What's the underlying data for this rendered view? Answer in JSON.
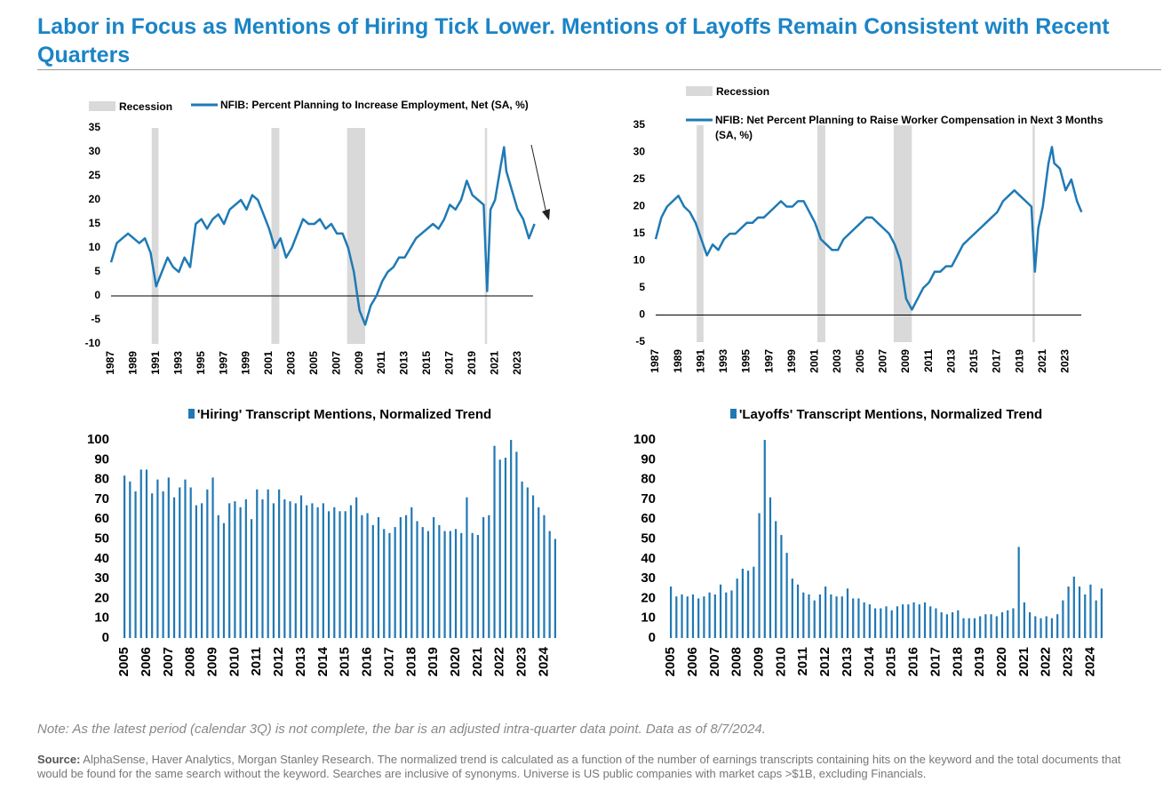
{
  "title": "Labor in Focus as Mentions of Hiring Tick Lower. Mentions of Layoffs Remain Consistent with Recent Quarters",
  "chart_data": [
    {
      "type": "line",
      "bands": {
        "name": "Recession",
        "color": "#d9d9d9",
        "ranges": [
          [
            1990.6,
            1991.2
          ],
          [
            2001.2,
            2001.9
          ],
          [
            2007.9,
            2009.5
          ],
          [
            2020.1,
            2020.3
          ]
        ]
      },
      "x": [
        1987,
        1987.5,
        1988,
        1988.5,
        1989,
        1989.5,
        1990,
        1990.5,
        1991,
        1991.5,
        1992,
        1992.5,
        1993,
        1993.5,
        1994,
        1994.5,
        1995,
        1995.5,
        1996,
        1996.5,
        1997,
        1997.5,
        1998,
        1998.5,
        1999,
        1999.5,
        2000,
        2000.5,
        2001,
        2001.5,
        2002,
        2002.5,
        2003,
        2003.5,
        2004,
        2004.5,
        2005,
        2005.5,
        2006,
        2006.5,
        2007,
        2007.5,
        2008,
        2008.5,
        2009,
        2009.5,
        2010,
        2010.5,
        2011,
        2011.5,
        2012,
        2012.5,
        2013,
        2013.5,
        2014,
        2014.5,
        2015,
        2015.5,
        2016,
        2016.5,
        2017,
        2017.5,
        2018,
        2018.5,
        2019,
        2019.5,
        2020,
        2020.3,
        2020.6,
        2021,
        2021.5,
        2021.8,
        2022,
        2022.5,
        2023,
        2023.5,
        2024,
        2024.5
      ],
      "series": [
        {
          "name": "NFIB: Percent Planning to Increase Employment, Net (SA, %)",
          "color": "#1f7ab5",
          "values": [
            7,
            11,
            12,
            13,
            12,
            11,
            12,
            9,
            2,
            5,
            8,
            6,
            5,
            8,
            6,
            15,
            16,
            14,
            16,
            17,
            15,
            18,
            19,
            20,
            18,
            21,
            20,
            17,
            14,
            10,
            12,
            8,
            10,
            13,
            16,
            15,
            15,
            16,
            14,
            15,
            13,
            13,
            10,
            5,
            -3,
            -6,
            -2,
            0,
            3,
            5,
            6,
            8,
            8,
            10,
            12,
            13,
            14,
            15,
            14,
            16,
            19,
            18,
            20,
            24,
            21,
            20,
            19,
            1,
            18,
            20,
            27,
            31,
            26,
            22,
            18,
            16,
            12,
            15
          ]
        }
      ],
      "xlim": [
        1987,
        2025
      ],
      "xticks": [
        1987,
        1989,
        1991,
        1993,
        1995,
        1997,
        1999,
        2001,
        2003,
        2005,
        2007,
        2009,
        2011,
        2013,
        2015,
        2017,
        2019,
        2021,
        2023
      ],
      "ylim": [
        -10,
        35
      ],
      "yticks": [
        -10,
        -5,
        0,
        5,
        10,
        15,
        20,
        25,
        30,
        35
      ]
    },
    {
      "type": "line",
      "bands": {
        "name": "Recession",
        "color": "#d9d9d9",
        "ranges": [
          [
            1990.6,
            1991.2
          ],
          [
            2001.2,
            2001.9
          ],
          [
            2007.9,
            2009.5
          ],
          [
            2020.1,
            2020.3
          ]
        ]
      },
      "x": [
        1987,
        1987.5,
        1988,
        1988.5,
        1989,
        1989.5,
        1990,
        1990.5,
        1991,
        1991.5,
        1992,
        1992.5,
        1993,
        1993.5,
        1994,
        1994.5,
        1995,
        1995.5,
        1996,
        1996.5,
        1997,
        1997.5,
        1998,
        1998.5,
        1999,
        1999.5,
        2000,
        2000.5,
        2001,
        2001.5,
        2002,
        2002.5,
        2003,
        2003.5,
        2004,
        2004.5,
        2005,
        2005.5,
        2006,
        2006.5,
        2007,
        2007.5,
        2008,
        2008.5,
        2009,
        2009.5,
        2010,
        2010.5,
        2011,
        2011.5,
        2012,
        2012.5,
        2013,
        2013.5,
        2014,
        2014.5,
        2015,
        2015.5,
        2016,
        2016.5,
        2017,
        2017.5,
        2018,
        2018.5,
        2019,
        2019.5,
        2020,
        2020.3,
        2020.6,
        2021,
        2021.5,
        2021.8,
        2022,
        2022.5,
        2023,
        2023.5,
        2024,
        2024.4
      ],
      "series": [
        {
          "name": "NFIB: Net Percent Planning to Raise Worker Compensation in Next 3 Months (SA, %)",
          "color": "#1f7ab5",
          "values": [
            14,
            18,
            20,
            21,
            22,
            20,
            19,
            17,
            14,
            11,
            13,
            12,
            14,
            15,
            15,
            16,
            17,
            17,
            18,
            18,
            19,
            20,
            21,
            20,
            20,
            21,
            21,
            19,
            17,
            14,
            13,
            12,
            12,
            14,
            15,
            16,
            17,
            18,
            18,
            17,
            16,
            15,
            13,
            10,
            3,
            1,
            3,
            5,
            6,
            8,
            8,
            9,
            9,
            11,
            13,
            14,
            15,
            16,
            17,
            18,
            19,
            21,
            22,
            23,
            22,
            21,
            20,
            8,
            16,
            20,
            28,
            31,
            28,
            27,
            23,
            25,
            21,
            19
          ]
        }
      ],
      "xlim": [
        1987,
        2025
      ],
      "xticks": [
        1987,
        1989,
        1991,
        1993,
        1995,
        1997,
        1999,
        2001,
        2003,
        2005,
        2007,
        2009,
        2011,
        2013,
        2015,
        2017,
        2019,
        2021,
        2023
      ],
      "ylim": [
        -5,
        35
      ],
      "yticks": [
        -5,
        0,
        5,
        10,
        15,
        20,
        25,
        30,
        35
      ]
    },
    {
      "type": "bar",
      "categories": [
        "2005",
        null,
        null,
        null,
        "2006",
        null,
        null,
        null,
        "2007",
        null,
        null,
        null,
        "2008",
        null,
        null,
        null,
        "2009",
        null,
        null,
        null,
        "2010",
        null,
        null,
        null,
        "2011",
        null,
        null,
        null,
        "2012",
        null,
        null,
        null,
        "2013",
        null,
        null,
        null,
        "2014",
        null,
        null,
        null,
        "2015",
        null,
        null,
        null,
        "2016",
        null,
        null,
        null,
        "2017",
        null,
        null,
        null,
        "2018",
        null,
        null,
        null,
        "2019",
        null,
        null,
        null,
        "2020",
        null,
        null,
        null,
        "2021",
        null,
        null,
        null,
        "2022",
        null,
        null,
        null,
        "2023",
        null,
        null,
        null,
        "2024",
        null,
        null
      ],
      "series": [
        {
          "name": "'Hiring' Transcript Mentions, Normalized Trend",
          "color": "#2078b4",
          "values": [
            82,
            79,
            74,
            85,
            85,
            73,
            80,
            74,
            81,
            71,
            76,
            80,
            76,
            67,
            68,
            75,
            81,
            62,
            58,
            68,
            69,
            66,
            70,
            60,
            75,
            70,
            75,
            68,
            75,
            70,
            69,
            68,
            72,
            67,
            68,
            66,
            68,
            64,
            66,
            64,
            64,
            67,
            71,
            62,
            63,
            57,
            61,
            55,
            53,
            56,
            61,
            62,
            66,
            59,
            56,
            54,
            61,
            57,
            54,
            54,
            55,
            53,
            71,
            53,
            52,
            61,
            62,
            97,
            90,
            91,
            100,
            94,
            79,
            76,
            72,
            66,
            62,
            54,
            50
          ]
        }
      ],
      "ylim": [
        0,
        100
      ],
      "yticks": [
        0,
        10,
        20,
        30,
        40,
        50,
        60,
        70,
        80,
        90,
        100
      ]
    },
    {
      "type": "bar",
      "categories": [
        "2005",
        null,
        null,
        null,
        "2006",
        null,
        null,
        null,
        "2007",
        null,
        null,
        null,
        "2008",
        null,
        null,
        null,
        "2009",
        null,
        null,
        null,
        "2010",
        null,
        null,
        null,
        "2011",
        null,
        null,
        null,
        "2012",
        null,
        null,
        null,
        "2013",
        null,
        null,
        null,
        "2014",
        null,
        null,
        null,
        "2015",
        null,
        null,
        null,
        "2016",
        null,
        null,
        null,
        "2017",
        null,
        null,
        null,
        "2018",
        null,
        null,
        null,
        "2019",
        null,
        null,
        null,
        "2020",
        null,
        null,
        null,
        "2021",
        null,
        null,
        null,
        "2022",
        null,
        null,
        null,
        "2023",
        null,
        null,
        null,
        "2024",
        null,
        null
      ],
      "series": [
        {
          "name": "'Layoffs' Transcript Mentions, Normalized Trend",
          "color": "#2078b4",
          "values": [
            26,
            21,
            22,
            21,
            22,
            20,
            21,
            23,
            22,
            27,
            23,
            24,
            30,
            35,
            34,
            36,
            63,
            100,
            71,
            59,
            52,
            43,
            30,
            27,
            23,
            22,
            19,
            22,
            26,
            22,
            21,
            21,
            25,
            20,
            20,
            18,
            17,
            15,
            15,
            16,
            14,
            16,
            17,
            17,
            18,
            17,
            18,
            16,
            15,
            13,
            12,
            13,
            14,
            10,
            10,
            10,
            11,
            12,
            12,
            11,
            13,
            14,
            15,
            46,
            18,
            13,
            11,
            10,
            11,
            10,
            12,
            19,
            26,
            31,
            26,
            22,
            27,
            19,
            25
          ]
        }
      ],
      "ylim": [
        0,
        100
      ],
      "yticks": [
        0,
        10,
        20,
        30,
        40,
        50,
        60,
        70,
        80,
        90,
        100
      ]
    }
  ],
  "note": "Note: As the latest period (calendar 3Q) is not complete, the bar is an adjusted intra-quarter data point. Data as of 8/7/2024.",
  "source": {
    "label": "Source:",
    "text": " AlphaSense, Haver Analytics, Morgan Stanley Research. The normalized trend is calculated as a function of the number of earnings transcripts containing hits on the keyword and the total documents that would be found for the same search without the keyword. Searches are inclusive of synonyms.  Universe is US public companies with market caps >$1B, excluding Financials."
  }
}
